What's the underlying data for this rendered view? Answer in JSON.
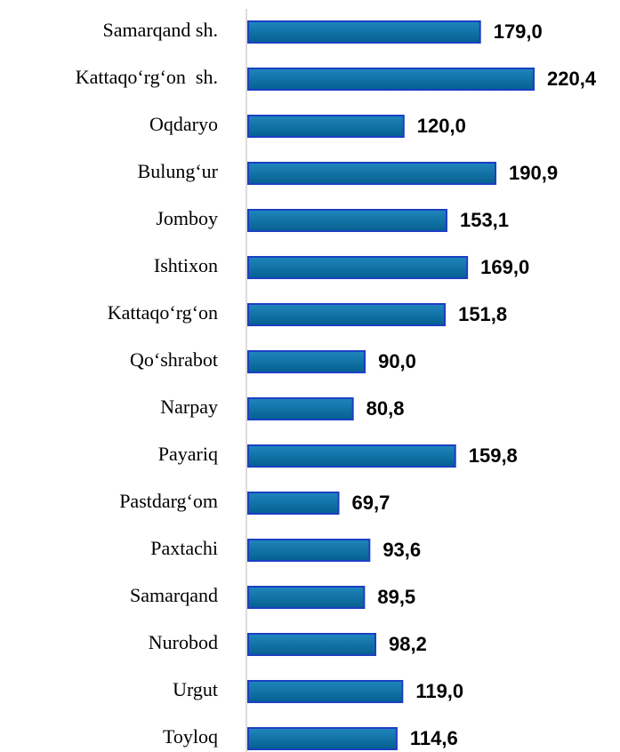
{
  "chart_data": {
    "type": "bar",
    "orientation": "horizontal",
    "categories": [
      "Samarqand sh.",
      "Kattaqo‘rg‘on  sh.",
      "Oqdaryo",
      "Bulung‘ur",
      "Jomboy",
      "Ishtixon",
      "Kattaqo‘rg‘on",
      "Qo‘shrabot",
      "Narpay",
      "Payariq",
      "Pastdarg‘om",
      "Paxtachi",
      "Samarqand",
      "Nurobod",
      "Urgut",
      "Toyloq"
    ],
    "values": [
      179.0,
      220.4,
      120.0,
      190.9,
      153.1,
      169.0,
      151.8,
      90.0,
      80.8,
      159.8,
      69.7,
      93.6,
      89.5,
      98.2,
      119.0,
      114.6
    ],
    "value_labels": [
      "179,0",
      "220,4",
      "120,0",
      "190,9",
      "153,1",
      "169,0",
      "151,8",
      "90,0",
      "80,8",
      "159,8",
      "69,7",
      "93,6",
      "89,5",
      "98,2",
      "119,0",
      "114,6"
    ],
    "color": "#0a70a8"
  }
}
